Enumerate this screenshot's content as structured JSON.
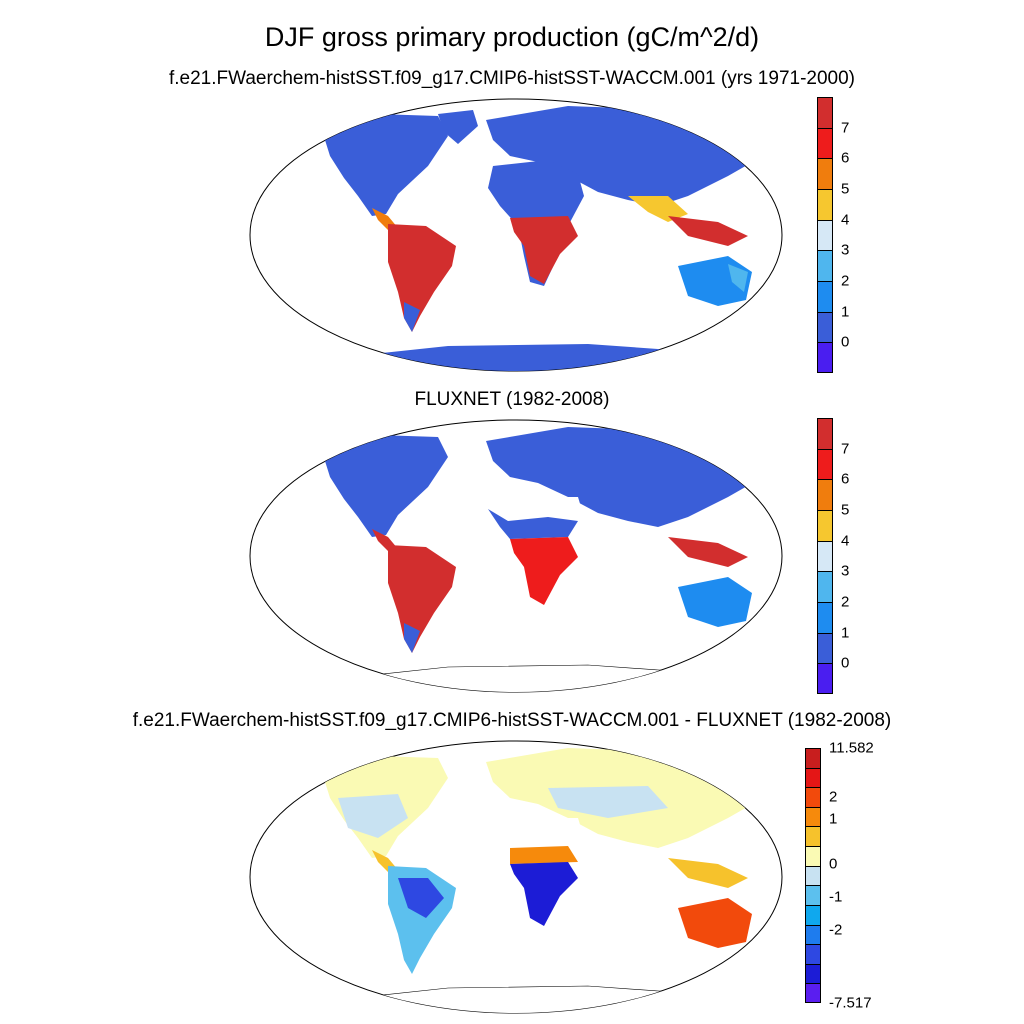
{
  "main_title": "DJF gross primary production (gC/m^2/d)",
  "panels": [
    {
      "subtitle": "f.e21.FWaerchem-histSST.f09_g17.CMIP6-histSST-WACCM.001 (yrs 1971-2000)",
      "colorbar": {
        "colors": [
          "#d22e2e",
          "#ee1c1c",
          "#f07d0d",
          "#f6c72f",
          "#d6e8f6",
          "#4fb6ee",
          "#1e8cf0",
          "#3a5ed8",
          "#4a1ef0"
        ],
        "labels": [
          "7",
          "6",
          "5",
          "4",
          "3",
          "2",
          "1",
          "0"
        ]
      }
    },
    {
      "subtitle": "FLUXNET (1982-2008)",
      "colorbar": {
        "colors": [
          "#d22e2e",
          "#ee1c1c",
          "#f07d0d",
          "#f6c72f",
          "#d6e8f6",
          "#4fb6ee",
          "#1e8cf0",
          "#3a5ed8",
          "#4a1ef0"
        ],
        "labels": [
          "7",
          "6",
          "5",
          "4",
          "3",
          "2",
          "1",
          "0"
        ]
      }
    },
    {
      "subtitle": "f.e21.FWaerchem-histSST.f09_g17.CMIP6-histSST-WACCM.001 - FLUXNET (1982-2008)",
      "colorbar": {
        "colors": [
          "#c81e1e",
          "#e41616",
          "#f24a0c",
          "#f68a0c",
          "#f6c22c",
          "#fafab4",
          "#c8e2f2",
          "#5cc0ee",
          "#0fa8ee",
          "#1e7cee",
          "#2e48e2",
          "#1c1cd6",
          "#5a1ef0"
        ],
        "labels": [
          "11.582",
          "2",
          "1",
          "0",
          "-1",
          "-2",
          "-7.517"
        ]
      }
    }
  ]
}
